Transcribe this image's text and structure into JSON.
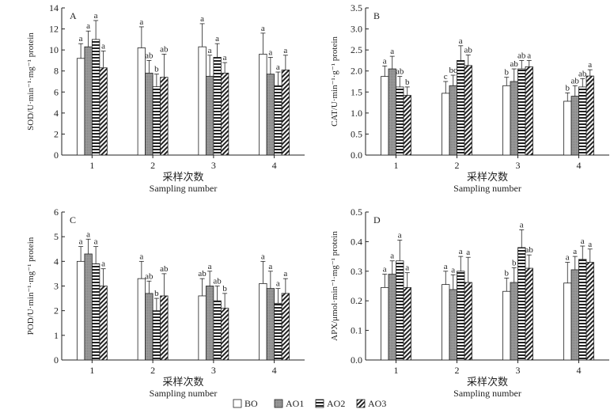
{
  "legend": [
    "BO",
    "AO1",
    "AO2",
    "AO3"
  ],
  "chart_data": [
    {
      "type": "bar",
      "panel": "A",
      "ylabel": "SOD/U·min⁻¹·mg⁻¹ protein",
      "xlabel_cn": "采样次数",
      "xlabel_en": "Sampling number",
      "categories": [
        "1",
        "2",
        "3",
        "4"
      ],
      "ylim": [
        0,
        14
      ],
      "yticks": [
        0,
        2,
        4,
        6,
        8,
        10,
        12,
        14
      ],
      "series": [
        {
          "name": "BO",
          "values": [
            9.2,
            10.2,
            10.3,
            9.6
          ],
          "errors": [
            1.4,
            2.0,
            2.2,
            2.0
          ],
          "labels": [
            "a",
            "a",
            "a",
            "a"
          ]
        },
        {
          "name": "AO1",
          "values": [
            10.3,
            7.8,
            7.5,
            7.7
          ],
          "errors": [
            1.5,
            1.2,
            2.0,
            1.6
          ],
          "labels": [
            "a",
            "ab",
            "a",
            "a"
          ]
        },
        {
          "name": "AO2",
          "values": [
            11.0,
            6.5,
            9.3,
            6.6
          ],
          "errors": [
            1.8,
            1.2,
            1.3,
            1.3
          ],
          "labels": [
            "a",
            "b",
            "a",
            "a"
          ]
        },
        {
          "name": "AO3",
          "values": [
            8.3,
            7.4,
            7.8,
            8.1
          ],
          "errors": [
            1.6,
            2.2,
            1.0,
            1.4
          ],
          "labels": [
            "a",
            "ab",
            "a",
            "a"
          ]
        }
      ]
    },
    {
      "type": "bar",
      "panel": "B",
      "ylabel": "CAT/U·min⁻¹·g⁻¹ protein",
      "xlabel_cn": "采样次数",
      "xlabel_en": "Sampling number",
      "categories": [
        "1",
        "2",
        "3",
        "4"
      ],
      "ylim": [
        0,
        3.5
      ],
      "yticks": [
        0,
        0.5,
        1.0,
        1.5,
        2.0,
        2.5,
        3.0,
        3.5
      ],
      "series": [
        {
          "name": "BO",
          "values": [
            1.87,
            1.47,
            1.65,
            1.28
          ],
          "errors": [
            0.25,
            0.28,
            0.2,
            0.2
          ],
          "labels": [
            "a",
            "c",
            "b",
            "b"
          ]
        },
        {
          "name": "AO1",
          "values": [
            2.05,
            1.65,
            1.75,
            1.4
          ],
          "errors": [
            0.3,
            0.25,
            0.3,
            0.25
          ],
          "labels": [
            "a",
            "bc",
            "ab",
            "ab"
          ]
        },
        {
          "name": "AO2",
          "values": [
            1.62,
            2.25,
            2.05,
            1.62
          ],
          "errors": [
            0.25,
            0.35,
            0.2,
            0.2
          ],
          "labels": [
            "ab",
            "a",
            "ab",
            "ab"
          ]
        },
        {
          "name": "AO3",
          "values": [
            1.42,
            2.13,
            2.1,
            1.88
          ],
          "errors": [
            0.2,
            0.25,
            0.15,
            0.15
          ],
          "labels": [
            "b",
            "ab",
            "a",
            "a"
          ]
        }
      ]
    },
    {
      "type": "bar",
      "panel": "C",
      "ylabel": "POD/U·min⁻¹·mg⁻¹ protein",
      "xlabel_cn": "采样次数",
      "xlabel_en": "Sampling number",
      "categories": [
        "1",
        "2",
        "3",
        "4"
      ],
      "ylim": [
        0,
        6
      ],
      "yticks": [
        0,
        1,
        2,
        3,
        4,
        5,
        6
      ],
      "series": [
        {
          "name": "BO",
          "values": [
            4.0,
            3.3,
            2.6,
            3.1
          ],
          "errors": [
            0.6,
            0.7,
            0.7,
            0.9
          ],
          "labels": [
            "a",
            "a",
            "ab",
            "a"
          ]
        },
        {
          "name": "AO1",
          "values": [
            4.3,
            2.7,
            3.0,
            2.9
          ],
          "errors": [
            0.6,
            0.5,
            0.6,
            0.7
          ],
          "labels": [
            "a",
            "ab",
            "a",
            "a"
          ]
        },
        {
          "name": "AO2",
          "values": [
            3.9,
            2.0,
            2.4,
            2.3
          ],
          "errors": [
            0.7,
            0.5,
            0.6,
            0.6
          ],
          "labels": [
            "a",
            "b",
            "ab",
            "a"
          ]
        },
        {
          "name": "AO3",
          "values": [
            3.0,
            2.6,
            2.1,
            2.7
          ],
          "errors": [
            0.7,
            0.9,
            0.6,
            0.6
          ],
          "labels": [
            "a",
            "ab",
            "b",
            "a"
          ]
        }
      ]
    },
    {
      "type": "bar",
      "panel": "D",
      "ylabel": "APX/μmol·min⁻¹·mg⁻¹ protein",
      "xlabel_cn": "采样次数",
      "xlabel_en": "Sampling number",
      "categories": [
        "1",
        "2",
        "3",
        "4"
      ],
      "ylim": [
        0,
        0.5
      ],
      "yticks": [
        0,
        0.1,
        0.2,
        0.3,
        0.4,
        0.5
      ],
      "series": [
        {
          "name": "BO",
          "values": [
            0.245,
            0.255,
            0.232,
            0.26
          ],
          "errors": [
            0.045,
            0.045,
            0.045,
            0.07
          ],
          "labels": [
            "a",
            "a",
            "b",
            "a"
          ]
        },
        {
          "name": "AO1",
          "values": [
            0.29,
            0.238,
            0.262,
            0.305
          ],
          "errors": [
            0.045,
            0.05,
            0.05,
            0.045
          ],
          "labels": [
            "a",
            "a",
            "b",
            "a"
          ]
        },
        {
          "name": "AO2",
          "values": [
            0.335,
            0.3,
            0.38,
            0.34
          ],
          "errors": [
            0.07,
            0.05,
            0.06,
            0.045
          ],
          "labels": [
            "a",
            "a",
            "a",
            "a"
          ]
        },
        {
          "name": "AO3",
          "values": [
            0.245,
            0.262,
            0.31,
            0.33
          ],
          "errors": [
            0.05,
            0.085,
            0.045,
            0.045
          ],
          "labels": [
            "a",
            "a",
            "ab",
            "a"
          ]
        }
      ]
    }
  ]
}
